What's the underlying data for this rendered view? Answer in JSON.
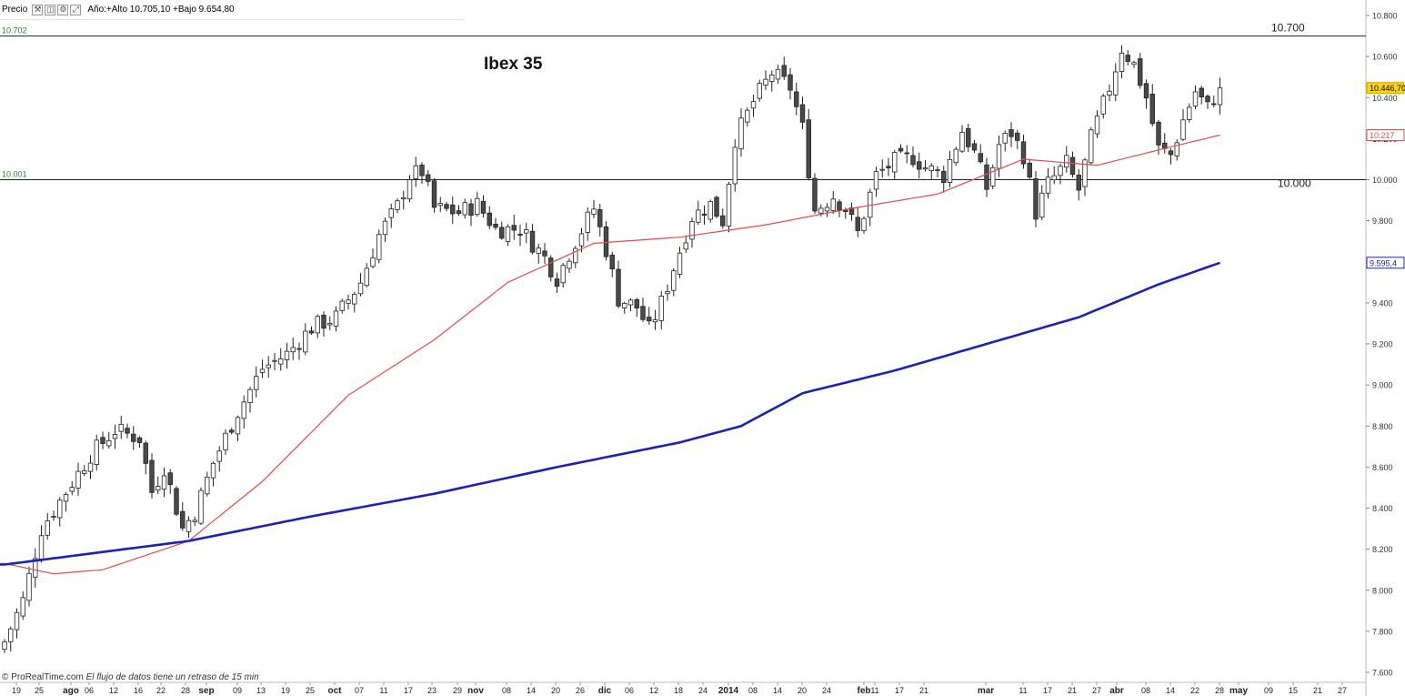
{
  "toolbar": {
    "price_label": "Precio",
    "icons": [
      "wrench-icon",
      "zoom-icon",
      "settings-icon",
      "expand-icon"
    ],
    "info": "Año:+Alto 10.705,10 +Bajo 9.654,80"
  },
  "footer": {
    "source": "© ProRealTime.com",
    "delay_note": "El flujo de datos tiene un retraso de 15 min"
  },
  "colors": {
    "up_candle": "#ffffff",
    "down_candle": "#4a4a4a",
    "ma_short": "#e84a4a",
    "ma_long": "#1a22b8",
    "last_price_badge": "#ffd400",
    "level_text": "#2e7d32"
  },
  "chart_data": {
    "type": "candlestick",
    "title": "Ibex 35",
    "ylim": [
      7600,
      10800
    ],
    "y_ticks": [
      "7.600",
      "7.800",
      "8.000",
      "8.200",
      "8.400",
      "8.600",
      "8.800",
      "9.000",
      "9.200",
      "9.400",
      "9.600",
      "9.800",
      "10.000",
      "10.200",
      "10.400",
      "10.600",
      "10.800"
    ],
    "x_tick_labels": [
      "19",
      "25",
      "ago",
      "06",
      "12",
      "16",
      "22",
      "28",
      "sep",
      "09",
      "13",
      "19",
      "25",
      "oct",
      "07",
      "11",
      "17",
      "23",
      "29",
      "nov",
      "08",
      "14",
      "20",
      "26",
      "dic",
      "06",
      "12",
      "18",
      "24",
      "2014",
      "08",
      "14",
      "20",
      "24",
      "feb",
      "11",
      "17",
      "21",
      "mar",
      "11",
      "17",
      "21",
      "27",
      "abr",
      "08",
      "14",
      "22",
      "28",
      "may",
      "09",
      "15",
      "21",
      "27"
    ],
    "horizontal_levels": [
      {
        "value": 10700,
        "left_label": "10.702",
        "right_label": "10.700"
      },
      {
        "value": 10000,
        "left_label": "10.001",
        "right_label": "10.000"
      }
    ],
    "last_values": {
      "price": "10.446,70",
      "ma_short": "10.217",
      "ma_long": "9.595,4"
    },
    "anchors": [
      {
        "day": 0,
        "close": 7750
      },
      {
        "day": 3,
        "close": 7950
      },
      {
        "day": 6,
        "close": 8300
      },
      {
        "day": 10,
        "close": 8480
      },
      {
        "day": 14,
        "close": 8660
      },
      {
        "day": 18,
        "close": 8780
      },
      {
        "day": 22,
        "close": 8740
      },
      {
        "day": 24,
        "close": 8480
      },
      {
        "day": 26,
        "close": 8600
      },
      {
        "day": 29,
        "close": 8300
      },
      {
        "day": 31,
        "close": 8380
      },
      {
        "day": 34,
        "close": 8620
      },
      {
        "day": 38,
        "close": 8870
      },
      {
        "day": 42,
        "close": 9080
      },
      {
        "day": 46,
        "close": 9150
      },
      {
        "day": 50,
        "close": 9280
      },
      {
        "day": 54,
        "close": 9330
      },
      {
        "day": 58,
        "close": 9500
      },
      {
        "day": 61,
        "close": 9730
      },
      {
        "day": 64,
        "close": 9870
      },
      {
        "day": 66,
        "close": 10020
      },
      {
        "day": 68,
        "close": 10040
      },
      {
        "day": 70,
        "close": 9860
      },
      {
        "day": 74,
        "close": 9840
      },
      {
        "day": 77,
        "close": 9880
      },
      {
        "day": 80,
        "close": 9760
      },
      {
        "day": 84,
        "close": 9760
      },
      {
        "day": 88,
        "close": 9620
      },
      {
        "day": 90,
        "close": 9520
      },
      {
        "day": 93,
        "close": 9700
      },
      {
        "day": 96,
        "close": 9860
      },
      {
        "day": 98,
        "close": 9660
      },
      {
        "day": 100,
        "close": 9420
      },
      {
        "day": 103,
        "close": 9380
      },
      {
        "day": 105,
        "close": 9270
      },
      {
        "day": 107,
        "close": 9400
      },
      {
        "day": 109,
        "close": 9570
      },
      {
        "day": 112,
        "close": 9820
      },
      {
        "day": 115,
        "close": 9880
      },
      {
        "day": 117,
        "close": 9800
      },
      {
        "day": 119,
        "close": 10200
      },
      {
        "day": 122,
        "close": 10380
      },
      {
        "day": 125,
        "close": 10520
      },
      {
        "day": 128,
        "close": 10450
      },
      {
        "day": 130,
        "close": 10250
      },
      {
        "day": 132,
        "close": 9850
      },
      {
        "day": 135,
        "close": 9920
      },
      {
        "day": 137,
        "close": 9860
      },
      {
        "day": 139,
        "close": 9740
      },
      {
        "day": 142,
        "close": 10020
      },
      {
        "day": 145,
        "close": 10090
      },
      {
        "day": 148,
        "close": 10110
      },
      {
        "day": 150,
        "close": 10060
      },
      {
        "day": 153,
        "close": 10020
      },
      {
        "day": 156,
        "close": 10240
      },
      {
        "day": 158,
        "close": 10130
      },
      {
        "day": 160,
        "close": 9960
      },
      {
        "day": 162,
        "close": 10170
      },
      {
        "day": 164,
        "close": 10230
      },
      {
        "day": 166,
        "close": 10120
      },
      {
        "day": 168,
        "close": 9840
      },
      {
        "day": 170,
        "close": 9980
      },
      {
        "day": 173,
        "close": 10080
      },
      {
        "day": 175,
        "close": 9950
      },
      {
        "day": 177,
        "close": 10200
      },
      {
        "day": 180,
        "close": 10450
      },
      {
        "day": 182,
        "close": 10640
      },
      {
        "day": 184,
        "close": 10560
      },
      {
        "day": 186,
        "close": 10400
      },
      {
        "day": 188,
        "close": 10150
      },
      {
        "day": 190,
        "close": 10120
      },
      {
        "day": 192,
        "close": 10290
      },
      {
        "day": 194,
        "close": 10430
      },
      {
        "day": 196,
        "close": 10350
      },
      {
        "day": 198,
        "close": 10446.7
      }
    ],
    "ma_short_anchors": [
      {
        "day": 0,
        "value": 8130
      },
      {
        "day": 8,
        "value": 8080
      },
      {
        "day": 16,
        "value": 8100
      },
      {
        "day": 30,
        "value": 8240
      },
      {
        "day": 42,
        "value": 8530
      },
      {
        "day": 56,
        "value": 8950
      },
      {
        "day": 70,
        "value": 9220
      },
      {
        "day": 82,
        "value": 9500
      },
      {
        "day": 96,
        "value": 9690
      },
      {
        "day": 110,
        "value": 9720
      },
      {
        "day": 124,
        "value": 9780
      },
      {
        "day": 138,
        "value": 9860
      },
      {
        "day": 152,
        "value": 9930
      },
      {
        "day": 166,
        "value": 10100
      },
      {
        "day": 178,
        "value": 10070
      },
      {
        "day": 190,
        "value": 10160
      },
      {
        "day": 198,
        "value": 10217
      }
    ],
    "ma_long_anchors": [
      {
        "day": 0,
        "value": 8125
      },
      {
        "day": 30,
        "value": 8240
      },
      {
        "day": 50,
        "value": 8360
      },
      {
        "day": 70,
        "value": 8470
      },
      {
        "day": 90,
        "value": 8600
      },
      {
        "day": 110,
        "value": 8720
      },
      {
        "day": 120,
        "value": 8800
      },
      {
        "day": 130,
        "value": 8960
      },
      {
        "day": 145,
        "value": 9070
      },
      {
        "day": 160,
        "value": 9200
      },
      {
        "day": 175,
        "value": 9330
      },
      {
        "day": 188,
        "value": 9490
      },
      {
        "day": 198,
        "value": 9595.4
      }
    ]
  }
}
